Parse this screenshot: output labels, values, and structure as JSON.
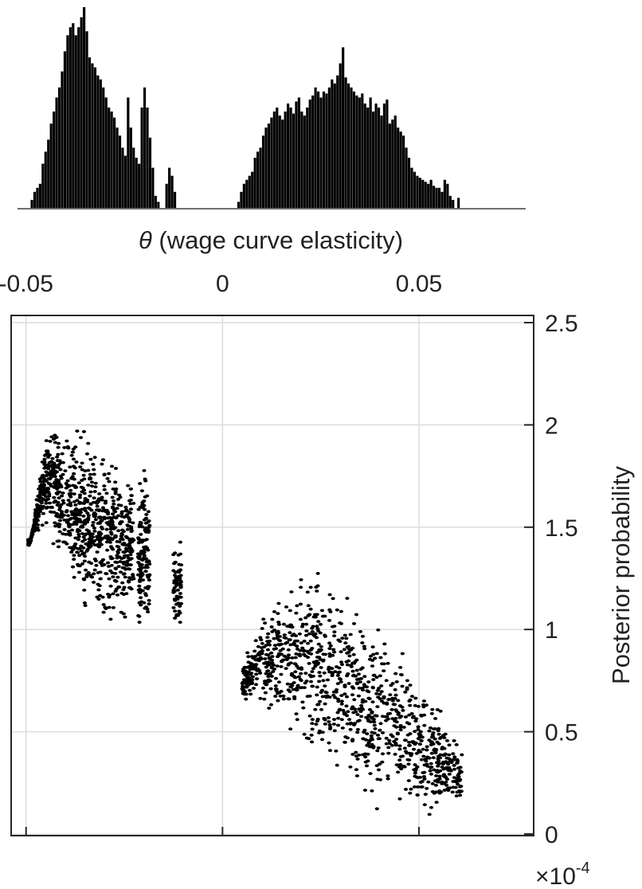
{
  "chart_data": [
    {
      "type": "histogram",
      "xlabel_symbol": "θ",
      "xlabel": "(wage curve elasticity)",
      "xlim": [
        -0.0538,
        0.0792
      ],
      "x_ticks": [
        -0.05,
        0,
        0.05
      ],
      "x_tick_labels": [
        "-0.05",
        "0",
        "0.05"
      ],
      "bar_color": "#000000",
      "bin_width": 0.0007,
      "bins": [
        [
          -0.0485,
          0.04
        ],
        [
          -0.0478,
          0.08
        ],
        [
          -0.0471,
          0.1
        ],
        [
          -0.0464,
          0.12
        ],
        [
          -0.0457,
          0.22
        ],
        [
          -0.045,
          0.28
        ],
        [
          -0.0443,
          0.34
        ],
        [
          -0.0436,
          0.42
        ],
        [
          -0.0429,
          0.48
        ],
        [
          -0.0422,
          0.55
        ],
        [
          -0.0415,
          0.6
        ],
        [
          -0.0408,
          0.68
        ],
        [
          -0.0401,
          0.78
        ],
        [
          -0.0394,
          0.86
        ],
        [
          -0.0387,
          0.9
        ],
        [
          -0.038,
          0.92
        ],
        [
          -0.0373,
          0.86
        ],
        [
          -0.0366,
          0.9
        ],
        [
          -0.0359,
          0.95
        ],
        [
          -0.0352,
          1.0
        ],
        [
          -0.0345,
          0.88
        ],
        [
          -0.0338,
          0.75
        ],
        [
          -0.0331,
          0.72
        ],
        [
          -0.0324,
          0.7
        ],
        [
          -0.0317,
          0.66
        ],
        [
          -0.031,
          0.64
        ],
        [
          -0.0303,
          0.6
        ],
        [
          -0.0296,
          0.55
        ],
        [
          -0.0289,
          0.5
        ],
        [
          -0.0282,
          0.48
        ],
        [
          -0.0275,
          0.45
        ],
        [
          -0.0268,
          0.4
        ],
        [
          -0.0261,
          0.36
        ],
        [
          -0.0254,
          0.3
        ],
        [
          -0.0247,
          0.26
        ],
        [
          -0.024,
          0.55
        ],
        [
          -0.0233,
          0.4
        ],
        [
          -0.0226,
          0.3
        ],
        [
          -0.0219,
          0.25
        ],
        [
          -0.0212,
          0.22
        ],
        [
          -0.0205,
          0.5
        ],
        [
          -0.0198,
          0.6
        ],
        [
          -0.0191,
          0.5
        ],
        [
          -0.0184,
          0.35
        ],
        [
          -0.0177,
          0.2
        ],
        [
          -0.017,
          0.06
        ],
        [
          -0.0163,
          0.03
        ],
        [
          -0.0142,
          0.12
        ],
        [
          -0.0135,
          0.2
        ],
        [
          -0.0128,
          0.16
        ],
        [
          -0.0121,
          0.08
        ],
        [
          0.0041,
          0.03
        ],
        [
          0.0048,
          0.08
        ],
        [
          0.0055,
          0.12
        ],
        [
          0.0062,
          0.14
        ],
        [
          0.0069,
          0.16
        ],
        [
          0.0076,
          0.18
        ],
        [
          0.0083,
          0.25
        ],
        [
          0.009,
          0.28
        ],
        [
          0.0097,
          0.3
        ],
        [
          0.0104,
          0.36
        ],
        [
          0.0111,
          0.4
        ],
        [
          0.0118,
          0.42
        ],
        [
          0.0125,
          0.45
        ],
        [
          0.0132,
          0.48
        ],
        [
          0.0139,
          0.5
        ],
        [
          0.0146,
          0.46
        ],
        [
          0.0153,
          0.44
        ],
        [
          0.016,
          0.48
        ],
        [
          0.0167,
          0.52
        ],
        [
          0.0174,
          0.5
        ],
        [
          0.0181,
          0.47
        ],
        [
          0.0188,
          0.53
        ],
        [
          0.0195,
          0.55
        ],
        [
          0.0202,
          0.48
        ],
        [
          0.0209,
          0.46
        ],
        [
          0.0216,
          0.5
        ],
        [
          0.0223,
          0.54
        ],
        [
          0.023,
          0.56
        ],
        [
          0.0237,
          0.6
        ],
        [
          0.0244,
          0.58
        ],
        [
          0.0251,
          0.55
        ],
        [
          0.0258,
          0.58
        ],
        [
          0.0265,
          0.57
        ],
        [
          0.0272,
          0.6
        ],
        [
          0.0279,
          0.64
        ],
        [
          0.0286,
          0.62
        ],
        [
          0.0293,
          0.66
        ],
        [
          0.03,
          0.72
        ],
        [
          0.0307,
          0.8
        ],
        [
          0.0314,
          0.65
        ],
        [
          0.0321,
          0.62
        ],
        [
          0.0328,
          0.6
        ],
        [
          0.0335,
          0.58
        ],
        [
          0.0342,
          0.56
        ],
        [
          0.0349,
          0.55
        ],
        [
          0.0356,
          0.57
        ],
        [
          0.0363,
          0.52
        ],
        [
          0.037,
          0.5
        ],
        [
          0.0377,
          0.55
        ],
        [
          0.0384,
          0.48
        ],
        [
          0.0391,
          0.52
        ],
        [
          0.0398,
          0.5
        ],
        [
          0.0405,
          0.46
        ],
        [
          0.0412,
          0.52
        ],
        [
          0.0419,
          0.54
        ],
        [
          0.0426,
          0.42
        ],
        [
          0.0433,
          0.44
        ],
        [
          0.044,
          0.46
        ],
        [
          0.0447,
          0.4
        ],
        [
          0.0454,
          0.38
        ],
        [
          0.0461,
          0.36
        ],
        [
          0.0468,
          0.3
        ],
        [
          0.0475,
          0.25
        ],
        [
          0.0482,
          0.2
        ],
        [
          0.0489,
          0.18
        ],
        [
          0.0496,
          0.16
        ],
        [
          0.0503,
          0.15
        ],
        [
          0.051,
          0.14
        ],
        [
          0.0517,
          0.13
        ],
        [
          0.0524,
          0.12
        ],
        [
          0.0531,
          0.14
        ],
        [
          0.0538,
          0.11
        ],
        [
          0.0545,
          0.1
        ],
        [
          0.0552,
          0.1
        ],
        [
          0.0559,
          0.08
        ],
        [
          0.0566,
          0.14
        ],
        [
          0.0573,
          0.12
        ],
        [
          0.058,
          0.06
        ],
        [
          0.0587,
          0.04
        ],
        [
          0.0601,
          0.05
        ]
      ]
    },
    {
      "type": "scatter",
      "ylabel": "Posterior probability",
      "xlim": [
        -0.0538,
        0.0792
      ],
      "ylim": [
        0,
        2.5
      ],
      "x_ticks": [
        -0.05,
        0,
        0.05
      ],
      "y_ticks": [
        0,
        0.5,
        1,
        1.5,
        2,
        2.5
      ],
      "y_tick_labels": [
        "0",
        "0.5",
        "1",
        "1.5",
        "2",
        "2.5"
      ],
      "y_multiplier": "×10",
      "y_exponent": "-4",
      "grid": true,
      "marker_color": "#000000",
      "clusters": [
        {
          "x_range": [
            -0.0495,
            -0.0225
          ],
          "approx_max_y": [
            [
              -0.049,
              1.4
            ],
            [
              -0.045,
              2.02
            ],
            [
              -0.04,
              2.04
            ],
            [
              -0.035,
              2.03
            ],
            [
              -0.03,
              1.95
            ],
            [
              -0.025,
              1.85
            ]
          ],
          "approx_min_y": [
            [
              -0.045,
              1.45
            ],
            [
              -0.04,
              1.2
            ],
            [
              -0.035,
              1.05
            ],
            [
              -0.03,
              0.96
            ],
            [
              -0.025,
              0.95
            ]
          ]
        },
        {
          "x_range": [
            -0.0215,
            -0.0185
          ],
          "approx_max_y": [
            [
              -0.02,
              1.85
            ]
          ],
          "approx_min_y": [
            [
              -0.02,
              0.9
            ]
          ]
        },
        {
          "x_range": [
            -0.0125,
            -0.0105
          ],
          "approx_max_y": [
            [
              -0.0115,
              1.55
            ]
          ],
          "approx_min_y": [
            [
              -0.0115,
              0.92
            ]
          ]
        },
        {
          "x_range": [
            0.005,
            0.061
          ],
          "approx_max_y": [
            [
              0.006,
              0.9
            ],
            [
              0.01,
              1.1
            ],
            [
              0.02,
              1.38
            ],
            [
              0.03,
              1.3
            ],
            [
              0.04,
              1.1
            ],
            [
              0.05,
              0.9
            ],
            [
              0.06,
              0.45
            ]
          ],
          "approx_min_y": [
            [
              0.01,
              0.6
            ],
            [
              0.02,
              0.35
            ],
            [
              0.03,
              0.15
            ],
            [
              0.04,
              0.05
            ],
            [
              0.05,
              0.02
            ],
            [
              0.06,
              0.12
            ]
          ]
        }
      ]
    }
  ]
}
